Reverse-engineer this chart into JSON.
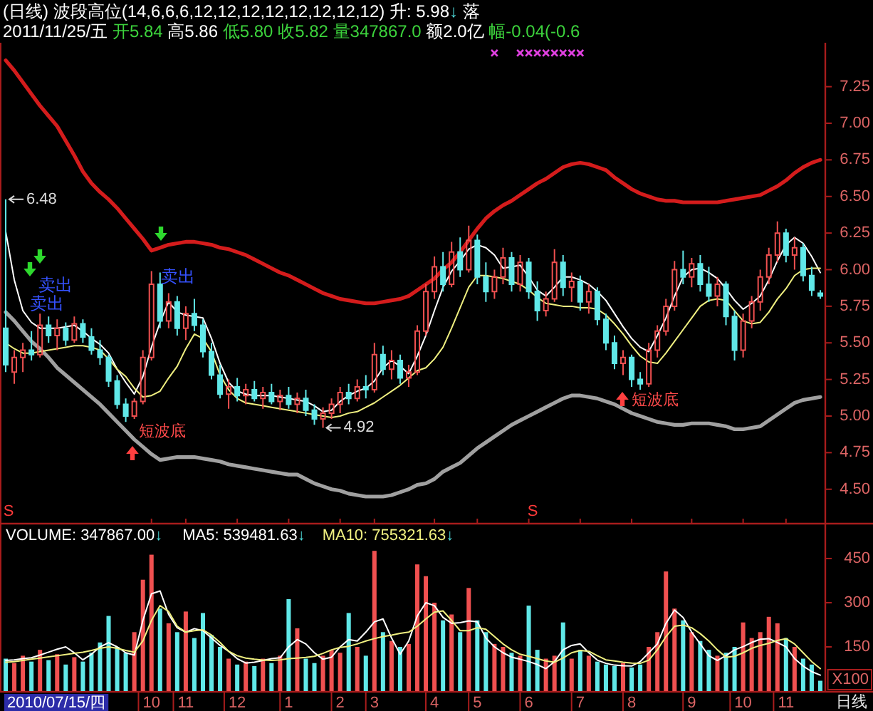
{
  "chart_data": [
    {
      "type": "candlestick",
      "title": "(日线) 波段高位(14,6,6,6,12,12,12,12,12,12,12,12) 升: 5.98↓ 落",
      "subtitle": "2011/11/25/五 开5.84 高5.86 低5.80 收5.82 量347867.0 额2.0亿 幅-0.04(-0.6",
      "categories": [
        null,
        null,
        null,
        null,
        null,
        null,
        null,
        null,
        null,
        null,
        null,
        null,
        null,
        null,
        null,
        null,
        null,
        "10",
        null,
        null,
        null,
        "11",
        null,
        null,
        null,
        null,
        null,
        "12",
        null,
        null,
        null,
        null,
        null,
        "1",
        null,
        null,
        null,
        null,
        null,
        "2",
        null,
        null,
        null,
        "3",
        null,
        null,
        null,
        null,
        null,
        null,
        "4",
        null,
        null,
        null,
        null,
        "5",
        null,
        null,
        null,
        null,
        null,
        "6",
        null,
        null,
        null,
        null,
        null,
        "7",
        null,
        null,
        null,
        null,
        null,
        "8",
        null,
        null,
        null,
        null,
        null,
        null,
        "9",
        null,
        null,
        null,
        null,
        null,
        "10",
        null,
        null,
        null,
        null,
        "11",
        null,
        null,
        null,
        null
      ],
      "ohlc": [
        [
          5.6,
          6.48,
          5.3,
          5.35
        ],
        [
          5.3,
          5.45,
          5.22,
          5.4
        ],
        [
          5.4,
          5.5,
          5.3,
          5.45
        ],
        [
          5.45,
          5.58,
          5.38,
          5.42
        ],
        [
          5.42,
          5.7,
          5.4,
          5.62
        ],
        [
          5.62,
          5.68,
          5.5,
          5.55
        ],
        [
          5.55,
          5.66,
          5.45,
          5.6
        ],
        [
          5.6,
          5.64,
          5.48,
          5.52
        ],
        [
          5.52,
          5.68,
          5.5,
          5.63
        ],
        [
          5.63,
          5.66,
          5.5,
          5.54
        ],
        [
          5.54,
          5.6,
          5.42,
          5.45
        ],
        [
          5.45,
          5.52,
          5.35,
          5.4
        ],
        [
          5.4,
          5.42,
          5.2,
          5.24
        ],
        [
          5.24,
          5.28,
          5.05,
          5.08
        ],
        [
          5.08,
          5.12,
          4.96,
          5.0
        ],
        [
          5.0,
          5.12,
          4.98,
          5.1
        ],
        [
          5.1,
          5.45,
          5.08,
          5.4
        ],
        [
          5.4,
          5.99,
          5.38,
          5.9
        ],
        [
          5.9,
          5.98,
          5.6,
          5.65
        ],
        [
          5.65,
          5.84,
          5.6,
          5.78
        ],
        [
          5.78,
          5.82,
          5.55,
          5.6
        ],
        [
          5.6,
          5.75,
          5.52,
          5.7
        ],
        [
          5.7,
          5.8,
          5.58,
          5.62
        ],
        [
          5.62,
          5.66,
          5.4,
          5.44
        ],
        [
          5.44,
          5.5,
          5.25,
          5.28
        ],
        [
          5.28,
          5.35,
          5.12,
          5.15
        ],
        [
          5.15,
          5.25,
          5.05,
          5.2
        ],
        [
          5.2,
          5.26,
          5.1,
          5.14
        ],
        [
          5.14,
          5.22,
          5.08,
          5.18
        ],
        [
          5.18,
          5.24,
          5.1,
          5.12
        ],
        [
          5.12,
          5.2,
          5.05,
          5.16
        ],
        [
          5.16,
          5.22,
          5.08,
          5.1
        ],
        [
          5.1,
          5.18,
          5.04,
          5.14
        ],
        [
          5.14,
          5.2,
          5.05,
          5.08
        ],
        [
          5.08,
          5.16,
          5.02,
          5.12
        ],
        [
          5.12,
          5.18,
          5.0,
          5.04
        ],
        [
          5.04,
          5.08,
          4.94,
          4.98
        ],
        [
          4.98,
          5.06,
          4.92,
          5.02
        ],
        [
          5.02,
          5.12,
          4.98,
          5.08
        ],
        [
          5.08,
          5.2,
          5.02,
          5.16
        ],
        [
          5.16,
          5.22,
          5.08,
          5.12
        ],
        [
          5.12,
          5.25,
          5.1,
          5.2
        ],
        [
          5.2,
          5.28,
          5.12,
          5.18
        ],
        [
          5.18,
          5.5,
          5.16,
          5.42
        ],
        [
          5.42,
          5.48,
          5.28,
          5.32
        ],
        [
          5.32,
          5.45,
          5.25,
          5.38
        ],
        [
          5.38,
          5.42,
          5.22,
          5.26
        ],
        [
          5.26,
          5.35,
          5.2,
          5.3
        ],
        [
          5.3,
          5.62,
          5.28,
          5.58
        ],
        [
          5.58,
          5.9,
          5.55,
          5.85
        ],
        [
          5.85,
          6.09,
          5.8,
          6.02
        ],
        [
          6.02,
          6.12,
          5.85,
          5.9
        ],
        [
          5.9,
          6.19,
          5.88,
          6.12
        ],
        [
          6.12,
          6.22,
          5.95,
          6.0
        ],
        [
          6.0,
          6.3,
          5.98,
          6.2
        ],
        [
          6.2,
          6.24,
          5.9,
          5.95
        ],
        [
          5.95,
          6.05,
          5.78,
          5.85
        ],
        [
          5.85,
          6.0,
          5.8,
          5.95
        ],
        [
          5.95,
          6.15,
          5.9,
          6.08
        ],
        [
          6.08,
          6.12,
          5.85,
          5.9
        ],
        [
          5.9,
          6.1,
          5.85,
          6.05
        ],
        [
          6.05,
          6.08,
          5.8,
          5.85
        ],
        [
          5.85,
          5.92,
          5.65,
          5.72
        ],
        [
          5.72,
          5.85,
          5.68,
          5.8
        ],
        [
          5.8,
          6.14,
          5.78,
          6.05
        ],
        [
          6.05,
          6.1,
          5.82,
          5.88
        ],
        [
          5.88,
          5.98,
          5.78,
          5.92
        ],
        [
          5.92,
          5.96,
          5.72,
          5.78
        ],
        [
          5.78,
          5.9,
          5.7,
          5.85
        ],
        [
          5.85,
          5.88,
          5.62,
          5.66
        ],
        [
          5.66,
          5.7,
          5.45,
          5.5
        ],
        [
          5.5,
          5.55,
          5.32,
          5.36
        ],
        [
          5.36,
          5.45,
          5.28,
          5.4
        ],
        [
          5.4,
          5.42,
          5.2,
          5.25
        ],
        [
          5.25,
          5.3,
          5.18,
          5.22
        ],
        [
          5.22,
          5.5,
          5.2,
          5.45
        ],
        [
          5.45,
          5.62,
          5.4,
          5.58
        ],
        [
          5.58,
          5.8,
          5.55,
          5.75
        ],
        [
          5.75,
          6.06,
          5.72,
          6.0
        ],
        [
          6.0,
          6.13,
          5.9,
          5.95
        ],
        [
          5.95,
          6.08,
          5.88,
          6.04
        ],
        [
          6.04,
          6.1,
          5.85,
          5.9
        ],
        [
          5.9,
          6.02,
          5.78,
          5.82
        ],
        [
          5.82,
          5.95,
          5.75,
          5.9
        ],
        [
          5.9,
          5.92,
          5.62,
          5.68
        ],
        [
          5.68,
          5.72,
          5.38,
          5.45
        ],
        [
          5.45,
          5.7,
          5.4,
          5.65
        ],
        [
          5.65,
          5.82,
          5.6,
          5.78
        ],
        [
          5.78,
          6.0,
          5.72,
          5.95
        ],
        [
          5.95,
          6.15,
          5.9,
          6.1
        ],
        [
          6.1,
          6.33,
          6.05,
          6.25
        ],
        [
          6.25,
          6.28,
          6.05,
          6.1
        ],
        [
          6.1,
          6.22,
          6.0,
          6.15
        ],
        [
          6.15,
          6.18,
          5.92,
          5.96
        ],
        [
          5.96,
          6.02,
          5.82,
          5.86
        ],
        [
          5.84,
          5.86,
          5.8,
          5.82
        ]
      ],
      "colors": [
        "#60e8e8",
        "#f05050",
        "#f05050",
        "#60e8e8",
        "#f05050",
        "#60e8e8",
        "#f05050",
        "#60e8e8",
        "#f05050",
        "#60e8e8",
        "#60e8e8",
        "#60e8e8",
        "#60e8e8",
        "#60e8e8",
        "#60e8e8",
        "#f05050",
        "#f05050",
        "#f05050",
        "#60e8e8",
        "#f05050",
        "#60e8e8",
        "#f05050",
        "#60e8e8",
        "#60e8e8",
        "#60e8e8",
        "#60e8e8",
        "#f05050",
        "#60e8e8",
        "#f05050",
        "#60e8e8",
        "#f05050",
        "#60e8e8",
        "#f05050",
        "#60e8e8",
        "#f05050",
        "#60e8e8",
        "#60e8e8",
        "#f05050",
        "#f05050",
        "#f05050",
        "#60e8e8",
        "#f05050",
        "#60e8e8",
        "#f05050",
        "#60e8e8",
        "#f05050",
        "#60e8e8",
        "#f05050",
        "#f05050",
        "#f05050",
        "#f05050",
        "#60e8e8",
        "#f05050",
        "#60e8e8",
        "#f05050",
        "#60e8e8",
        "#60e8e8",
        "#f05050",
        "#f05050",
        "#60e8e8",
        "#f05050",
        "#60e8e8",
        "#60e8e8",
        "#f05050",
        "#f05050",
        "#60e8e8",
        "#f05050",
        "#60e8e8",
        "#f05050",
        "#60e8e8",
        "#60e8e8",
        "#60e8e8",
        "#f05050",
        "#60e8e8",
        "#60e8e8",
        "#f05050",
        "#f05050",
        "#f05050",
        "#f05050",
        "#60e8e8",
        "#f05050",
        "#60e8e8",
        "#60e8e8",
        "#f05050",
        "#60e8e8",
        "#60e8e8",
        "#f05050",
        "#f05050",
        "#f05050",
        "#f05050",
        "#f05050",
        "#60e8e8",
        "#f05050",
        "#60e8e8",
        "#60e8e8",
        "#60e8e8"
      ],
      "series": [
        {
          "type": "line",
          "color": "#d41c1c",
          "values": [
            7.43,
            7.36,
            7.28,
            7.2,
            7.12,
            7.05,
            6.98,
            6.88,
            6.78,
            6.67,
            6.59,
            6.53,
            6.48,
            6.42,
            6.35,
            6.28,
            6.21,
            6.13,
            6.15,
            6.17,
            6.18,
            6.19,
            6.19,
            6.18,
            6.17,
            6.15,
            6.14,
            6.12,
            6.1,
            6.07,
            6.04,
            6.01,
            5.98,
            5.96,
            5.93,
            5.9,
            5.87,
            5.84,
            5.82,
            5.8,
            5.79,
            5.78,
            5.77,
            5.77,
            5.78,
            5.79,
            5.8,
            5.82,
            5.86,
            5.9,
            5.94,
            6.0,
            6.05,
            6.12,
            6.2,
            6.28,
            6.35,
            6.4,
            6.44,
            6.47,
            6.51,
            6.55,
            6.59,
            6.62,
            6.66,
            6.7,
            6.72,
            6.73,
            6.72,
            6.7,
            6.68,
            6.63,
            6.59,
            6.55,
            6.52,
            6.5,
            6.48,
            6.47,
            6.47,
            6.46,
            6.46,
            6.46,
            6.46,
            6.46,
            6.47,
            6.48,
            6.49,
            6.5,
            6.51,
            6.54,
            6.57,
            6.61,
            6.66,
            6.7,
            6.73,
            6.75
          ]
        },
        {
          "type": "line",
          "color": "#a0a0a0",
          "values": [
            5.71,
            5.65,
            5.58,
            5.51,
            5.46,
            5.4,
            5.33,
            5.28,
            5.23,
            5.18,
            5.13,
            5.08,
            5.02,
            4.96,
            4.9,
            4.84,
            4.79,
            4.74,
            4.7,
            4.71,
            4.72,
            4.72,
            4.72,
            4.71,
            4.7,
            4.69,
            4.67,
            4.66,
            4.65,
            4.64,
            4.63,
            4.62,
            4.61,
            4.6,
            4.6,
            4.57,
            4.54,
            4.52,
            4.5,
            4.49,
            4.47,
            4.46,
            4.45,
            4.45,
            4.45,
            4.46,
            4.48,
            4.5,
            4.53,
            4.54,
            4.57,
            4.62,
            4.65,
            4.68,
            4.73,
            4.78,
            4.82,
            4.86,
            4.9,
            4.94,
            4.97,
            5.0,
            5.03,
            5.06,
            5.09,
            5.12,
            5.14,
            5.14,
            5.13,
            5.12,
            5.1,
            5.08,
            5.05,
            5.02,
            5.0,
            4.98,
            4.96,
            4.95,
            4.94,
            4.94,
            4.95,
            4.95,
            4.95,
            4.94,
            4.93,
            4.91,
            4.91,
            4.92,
            4.93,
            4.97,
            5.01,
            5.05,
            5.09,
            5.11,
            5.12,
            5.13
          ]
        },
        {
          "type": "line",
          "color": "#ffffff",
          "values": [
            6.26,
            5.93,
            5.72,
            5.64,
            5.6,
            5.6,
            5.6,
            5.61,
            5.62,
            5.58,
            5.53,
            5.49,
            5.43,
            5.32,
            5.23,
            5.15,
            5.27,
            5.47,
            5.64,
            5.78,
            5.71,
            5.69,
            5.68,
            5.67,
            5.53,
            5.36,
            5.23,
            5.17,
            5.15,
            5.14,
            5.14,
            5.14,
            5.13,
            5.12,
            5.11,
            5.1,
            5.07,
            5.03,
            5.04,
            5.1,
            5.14,
            5.17,
            5.19,
            5.24,
            5.33,
            5.38,
            5.34,
            5.29,
            5.41,
            5.55,
            5.72,
            5.88,
            5.99,
            6.06,
            6.14,
            6.17,
            6.15,
            6.1,
            6.01,
            6.02,
            6.03,
            5.95,
            5.86,
            5.82,
            5.88,
            5.95,
            5.95,
            5.93,
            5.9,
            5.85,
            5.79,
            5.7,
            5.61,
            5.53,
            5.47,
            5.44,
            5.55,
            5.67,
            5.82,
            5.95,
            6.0,
            6.01,
            5.98,
            5.94,
            5.87,
            5.79,
            5.73,
            5.77,
            5.82,
            5.93,
            6.06,
            6.17,
            6.22,
            6.18,
            6.09,
            5.98
          ]
        },
        {
          "type": "line",
          "color": "#f0f080",
          "values": [
            5.5,
            5.46,
            5.43,
            5.43,
            5.44,
            5.45,
            5.46,
            5.47,
            5.48,
            5.48,
            5.47,
            5.45,
            5.39,
            5.32,
            5.27,
            5.19,
            5.13,
            5.14,
            5.17,
            5.26,
            5.34,
            5.46,
            5.56,
            5.53,
            5.44,
            5.28,
            5.18,
            5.12,
            5.09,
            5.08,
            5.07,
            5.06,
            5.05,
            5.04,
            5.03,
            5.02,
            5.01,
            5.0,
            4.99,
            5.0,
            5.02,
            5.03,
            5.06,
            5.09,
            5.13,
            5.17,
            5.21,
            5.26,
            5.31,
            5.33,
            5.39,
            5.47,
            5.6,
            5.74,
            5.88,
            5.96,
            5.96,
            5.95,
            5.94,
            5.92,
            5.9,
            5.86,
            5.81,
            5.77,
            5.76,
            5.75,
            5.75,
            5.74,
            5.74,
            5.73,
            5.69,
            5.63,
            5.56,
            5.48,
            5.41,
            5.37,
            5.36,
            5.43,
            5.51,
            5.59,
            5.67,
            5.75,
            5.79,
            5.8,
            5.79,
            5.72,
            5.65,
            5.63,
            5.64,
            5.71,
            5.8,
            5.87,
            5.96,
            6.0,
            6.01,
            6.01
          ]
        },
        {
          "type": "scatter",
          "marker": "cross",
          "color": "#e040e0",
          "values": [
            null,
            null,
            null,
            null,
            null,
            null,
            null,
            null,
            null,
            null,
            null,
            null,
            null,
            null,
            null,
            null,
            null,
            null,
            null,
            null,
            null,
            null,
            null,
            null,
            null,
            null,
            null,
            null,
            null,
            null,
            null,
            null,
            null,
            null,
            null,
            null,
            null,
            null,
            null,
            null,
            null,
            null,
            null,
            null,
            null,
            null,
            null,
            null,
            null,
            null,
            null,
            null,
            null,
            null,
            null,
            null,
            null,
            7.48,
            null,
            null,
            7.48,
            7.48,
            7.48,
            7.48,
            7.48,
            7.48,
            7.48,
            7.48,
            null,
            null,
            null,
            null,
            null,
            null,
            null,
            null,
            null,
            null,
            null,
            null,
            null,
            null,
            null,
            null,
            null,
            null,
            null,
            null,
            null,
            null,
            null,
            null,
            null,
            null,
            null,
            null
          ]
        }
      ],
      "ylim": [
        4.27,
        7.55
      ],
      "yticks": [
        7.25,
        {
          "value": 7.0,
          "label": "7.00"
        },
        6.75,
        {
          "value": 6.5,
          "label": "6.50"
        },
        6.25,
        {
          "value": 6.0,
          "label": "6.00"
        },
        5.75,
        {
          "value": 5.5,
          "label": "5.50"
        },
        5.25,
        {
          "value": 5.0,
          "label": "5.00"
        },
        4.75,
        {
          "value": 4.5,
          "label": "4.50"
        }
      ],
      "tick_labels": "y",
      "annotations": [
        "6.48",
        "4.92",
        "卖出",
        "卖出",
        "卖出",
        "短波底",
        "短波底",
        "S",
        "S"
      ]
    },
    {
      "type": "bar",
      "title": "VOLUME: 347867.00↓",
      "ylabel": "X100",
      "categories": [
        null,
        null,
        null,
        null,
        null,
        null,
        null,
        null,
        null,
        null,
        null,
        null,
        null,
        null,
        null,
        null,
        null,
        "10",
        null,
        null,
        null,
        "11",
        null,
        null,
        null,
        null,
        null,
        "12",
        null,
        null,
        null,
        null,
        null,
        "1",
        null,
        null,
        null,
        null,
        null,
        "2",
        null,
        null,
        null,
        "3",
        null,
        null,
        null,
        null,
        null,
        null,
        "4",
        null,
        null,
        null,
        null,
        "5",
        null,
        null,
        null,
        null,
        null,
        "6",
        null,
        null,
        null,
        null,
        null,
        "7",
        null,
        null,
        null,
        null,
        null,
        "8",
        null,
        null,
        null,
        null,
        null,
        null,
        "9",
        null,
        null,
        null,
        null,
        null,
        "10",
        null,
        null,
        null,
        null,
        "11",
        null,
        null,
        null,
        null
      ],
      "values": [
        110,
        95,
        120,
        100,
        140,
        105,
        125,
        90,
        115,
        100,
        130,
        165,
        255,
        150,
        130,
        200,
        378,
        463,
        280,
        230,
        200,
        270,
        180,
        265,
        190,
        150,
        110,
        90,
        100,
        85,
        110,
        95,
        120,
        312,
        213,
        110,
        95,
        120,
        140,
        130,
        265,
        150,
        120,
        476,
        200,
        170,
        150,
        160,
        430,
        390,
        300,
        240,
        260,
        200,
        350,
        240,
        200,
        160,
        150,
        130,
        120,
        290,
        140,
        110,
        120,
        233,
        110,
        140,
        120,
        100,
        90,
        85,
        95,
        80,
        90,
        150,
        200,
        406,
        280,
        240,
        200,
        170,
        140,
        120,
        130,
        150,
        233,
        180,
        200,
        252,
        230,
        180,
        150,
        110,
        90,
        35
      ],
      "colors": [
        "#60e8e8",
        "#f05050",
        "#f05050",
        "#60e8e8",
        "#f05050",
        "#60e8e8",
        "#f05050",
        "#60e8e8",
        "#f05050",
        "#60e8e8",
        "#60e8e8",
        "#60e8e8",
        "#60e8e8",
        "#60e8e8",
        "#60e8e8",
        "#f05050",
        "#f05050",
        "#f05050",
        "#60e8e8",
        "#f05050",
        "#60e8e8",
        "#f05050",
        "#60e8e8",
        "#60e8e8",
        "#60e8e8",
        "#60e8e8",
        "#f05050",
        "#60e8e8",
        "#f05050",
        "#60e8e8",
        "#f05050",
        "#60e8e8",
        "#f05050",
        "#60e8e8",
        "#f05050",
        "#60e8e8",
        "#60e8e8",
        "#f05050",
        "#f05050",
        "#f05050",
        "#60e8e8",
        "#f05050",
        "#60e8e8",
        "#f05050",
        "#60e8e8",
        "#f05050",
        "#60e8e8",
        "#f05050",
        "#f05050",
        "#f05050",
        "#f05050",
        "#60e8e8",
        "#f05050",
        "#60e8e8",
        "#f05050",
        "#60e8e8",
        "#60e8e8",
        "#f05050",
        "#f05050",
        "#60e8e8",
        "#f05050",
        "#60e8e8",
        "#60e8e8",
        "#f05050",
        "#f05050",
        "#60e8e8",
        "#f05050",
        "#60e8e8",
        "#f05050",
        "#60e8e8",
        "#60e8e8",
        "#60e8e8",
        "#f05050",
        "#60e8e8",
        "#60e8e8",
        "#f05050",
        "#f05050",
        "#f05050",
        "#f05050",
        "#60e8e8",
        "#f05050",
        "#60e8e8",
        "#60e8e8",
        "#f05050",
        "#60e8e8",
        "#60e8e8",
        "#f05050",
        "#f05050",
        "#f05050",
        "#f05050",
        "#f05050",
        "#60e8e8",
        "#f05050",
        "#60e8e8",
        "#60e8e8",
        "#60e8e8"
      ],
      "series": [
        {
          "name": "MA5: 539481.63↓",
          "type": "line",
          "color": "#ffffff",
          "values": [
            104,
            106,
            110,
            113,
            122,
            132,
            142,
            150,
            130,
            106,
            125,
            150,
            164,
            150,
            130,
            122,
            240,
            330,
            340,
            260,
            215,
            200,
            212,
            205,
            180,
            155,
            135,
            110,
            95,
            98,
            104,
            110,
            113,
            150,
            175,
            160,
            130,
            108,
            115,
            150,
            175,
            170,
            200,
            235,
            245,
            180,
            125,
            170,
            255,
            300,
            290,
            250,
            230,
            232,
            238,
            235,
            180,
            150,
            130,
            115,
            108,
            100,
            90,
            76,
            100,
            140,
            155,
            160,
            130,
            105,
            94,
            88,
            86,
            85,
            100,
            130,
            160,
            230,
            275,
            250,
            200,
            160,
            120,
            104,
            120,
            140,
            151,
            165,
            176,
            178,
            165,
            150,
            110,
            85,
            66,
            54
          ]
        },
        {
          "name": "MA10: 755321.63↓",
          "type": "line",
          "color": "#f0f080",
          "values": [
            98,
            100,
            104,
            108,
            112,
            116,
            120,
            124,
            128,
            132,
            138,
            145,
            150,
            145,
            138,
            132,
            170,
            240,
            290,
            270,
            220,
            200,
            205,
            208,
            190,
            165,
            135,
            120,
            112,
            108,
            105,
            104,
            106,
            110,
            112,
            114,
            118,
            128,
            140,
            148,
            152,
            160,
            170,
            178,
            185,
            190,
            196,
            200,
            220,
            245,
            268,
            272,
            240,
            205,
            205,
            215,
            210,
            185,
            160,
            140,
            125,
            118,
            110,
            102,
            98,
            112,
            130,
            138,
            135,
            120,
            106,
            102,
            98,
            95,
            94,
            105,
            140,
            185,
            220,
            224,
            215,
            195,
            170,
            140,
            115,
            118,
            130,
            145,
            155,
            162,
            172,
            178,
            160,
            130,
            100,
            76
          ]
        }
      ],
      "ylim": [
        0,
        566
      ],
      "yticks": [
        150,
        300,
        450
      ],
      "legend": "top left",
      "annotations": [
        "2010/07/15/四",
        "日线"
      ]
    }
  ]
}
